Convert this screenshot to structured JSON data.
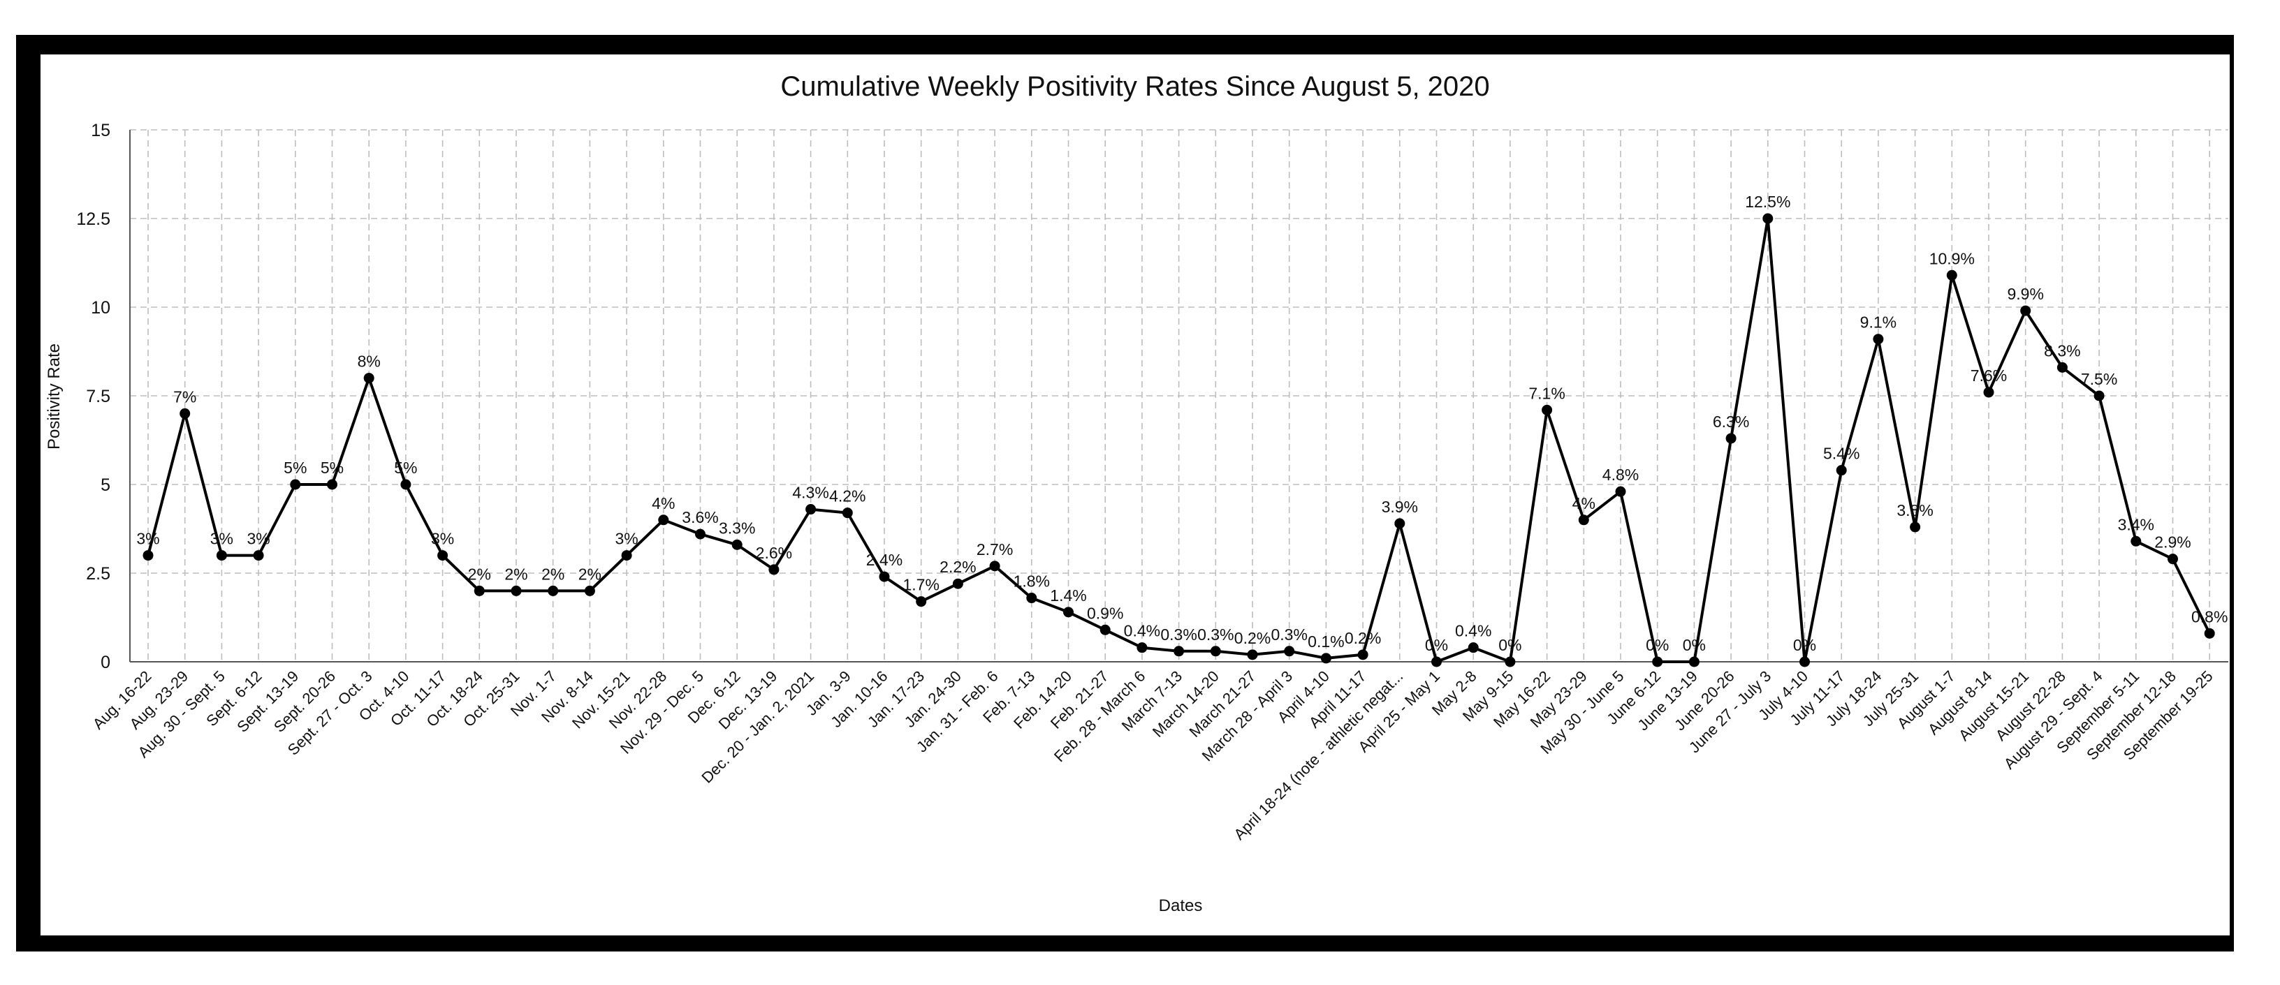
{
  "chart_data": {
    "type": "line",
    "title": "Cumulative Weekly Positivity Rates Since August 5, 2020",
    "xlabel": "Dates",
    "ylabel": "Positivity Rate",
    "ylim": [
      0,
      15
    ],
    "yticks": [
      "0",
      "2.5",
      "5",
      "7.5",
      "10",
      "12.5",
      "15"
    ],
    "grid": true,
    "legend": "none",
    "categories": [
      "Aug. 16-22",
      "Aug. 23-29",
      "Aug. 30 - Sept. 5",
      "Sept. 6-12",
      "Sept. 13-19",
      "Sept. 20-26",
      "Sept. 27 - Oct. 3",
      "Oct. 4-10",
      "Oct. 11-17",
      "Oct. 18-24",
      "Oct. 25-31",
      "Nov. 1-7",
      "Nov. 8-14",
      "Nov. 15-21",
      "Nov. 22-28",
      "Nov. 29 - Dec. 5",
      "Dec. 6-12",
      "Dec. 13-19",
      "Dec. 20 - Jan. 2, 2021",
      "Jan. 3-9",
      "Jan. 10-16",
      "Jan. 17-23",
      "Jan. 24-30",
      "Jan. 31 - Feb. 6",
      "Feb. 7-13",
      "Feb. 14-20",
      "Feb. 21-27",
      "Feb. 28 - March 6",
      "March 7-13",
      "March 14-20",
      "March 21-27",
      "March 28 - April 3",
      "April 4-10",
      "April 11-17",
      "April 18-24 (note - athletic negat...",
      "April 25 - May 1",
      "May 2-8",
      "May 9-15",
      "May 16-22",
      "May 23-29",
      "May 30 - June 5",
      "June 6-12",
      "June 13-19",
      "June 20-26",
      "June 27 - July 3",
      "July 4-10",
      "July 11-17",
      "July 18-24",
      "July 25-31",
      "August 1-7",
      "August 8-14",
      "August 15-21",
      "August 22-28",
      "August 29 - Sept. 4",
      "September 5-11",
      "September 12-18",
      "September 19-25"
    ],
    "series": [
      {
        "values": [
          3,
          7,
          3,
          3,
          5,
          5,
          8,
          5,
          3,
          2,
          2,
          2,
          2,
          3,
          4,
          3.6,
          3.3,
          2.6,
          4.3,
          4.2,
          2.4,
          1.7,
          2.2,
          2.7,
          1.8,
          1.4,
          0.9,
          0.4,
          0.3,
          0.3,
          0.2,
          0.3,
          0.1,
          0.2,
          3.9,
          0,
          0.4,
          0,
          7.1,
          4,
          4.8,
          0,
          0,
          6.3,
          12.5,
          0,
          5.4,
          9.1,
          3.8,
          10.9,
          7.6,
          9.9,
          8.3,
          7.5,
          3.4,
          2.9,
          0.8
        ],
        "labels": [
          "3%",
          "7%",
          "3%",
          "3%",
          "5%",
          "5%",
          "8%",
          "5%",
          "3%",
          "2%",
          "2%",
          "2%",
          "2%",
          "3%",
          "4%",
          "3.6%",
          "3.3%",
          "2.6%",
          "4.3%",
          "4.2%",
          "2.4%",
          "1.7%",
          "2.2%",
          "2.7%",
          "1.8%",
          "1.4%",
          "0.9%",
          "0.4%",
          "0.3%",
          "0.3%",
          "0.2%",
          "0.3%",
          "0.1%",
          "0.2%",
          "3.9%",
          "0%",
          "0.4%",
          "0%",
          "7.1%",
          "4%",
          "4.8%",
          "0%",
          "0%",
          "6.3%",
          "12.5%",
          "0%",
          "5.4%",
          "9.1%",
          "3.8%",
          "10.9%",
          "7.6%",
          "9.9%",
          "8.3%",
          "7.5%",
          "3.4%",
          "2.9%",
          "0.8%"
        ],
        "color": "#000000"
      }
    ]
  }
}
